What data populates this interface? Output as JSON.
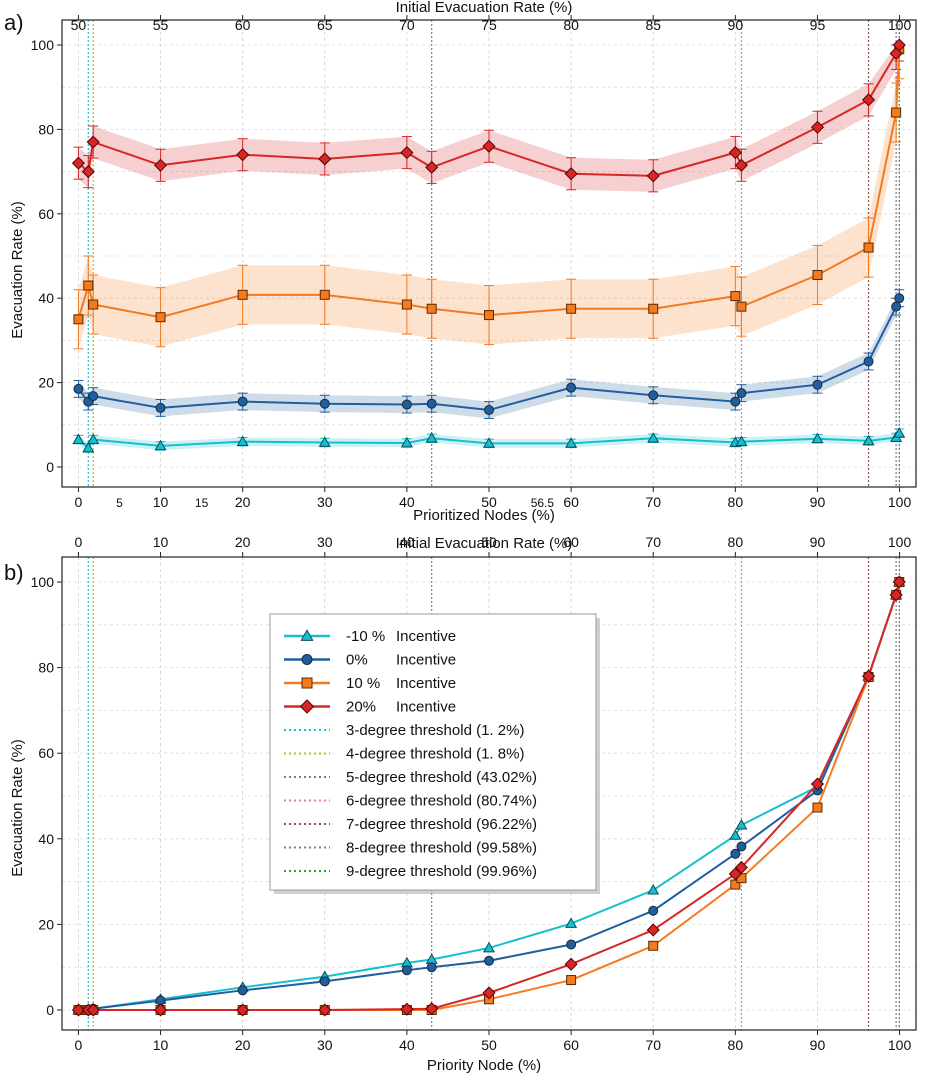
{
  "panel_a": {
    "label": "a)",
    "top_axis_label": "Initial Evacuation Rate (%)",
    "top_ticks": [
      {
        "label": "50",
        "at": 0
      },
      {
        "label": "55",
        "at": 10
      },
      {
        "label": "60",
        "at": 20
      },
      {
        "label": "65",
        "at": 30
      },
      {
        "label": "70",
        "at": 40
      },
      {
        "label": "75",
        "at": 50
      },
      {
        "label": "80",
        "at": 60
      },
      {
        "label": "85",
        "at": 70
      },
      {
        "label": "90",
        "at": 80
      },
      {
        "label": "95",
        "at": 90
      },
      {
        "label": "100",
        "at": 100
      }
    ],
    "bottom_major_ticks": [
      "0",
      "10",
      "20",
      "30",
      "40",
      "50",
      "60",
      "70",
      "80",
      "90",
      "100"
    ],
    "bottom_minor_ticks": [
      {
        "label": "5",
        "at": 5
      },
      {
        "label": "15",
        "at": 15
      },
      {
        "label": "56.5",
        "at": 56.5
      }
    ],
    "xlabel": "Prioritized Nodes (%)",
    "ylabel": "Evacuation Rate (%)",
    "ylim": [
      0,
      100
    ],
    "yticks": [
      "0",
      "20",
      "40",
      "60",
      "80",
      "100"
    ]
  },
  "panel_b": {
    "label": "b)",
    "top_axis_label": "Initial Evacuation Rate (%)",
    "top_ticks": [
      "0",
      "10",
      "20",
      "30",
      "40",
      "50",
      "60",
      "70",
      "80",
      "90",
      "100"
    ],
    "xlabel": "Priority Node (%)",
    "ylabel": "Evacuation Rate (%)",
    "ylim": [
      0,
      100
    ],
    "yticks": [
      "0",
      "20",
      "40",
      "60",
      "80",
      "100"
    ]
  },
  "legend": {
    "series": [
      {
        "marker_label": "-10 %",
        "text": "Incentive"
      },
      {
        "marker_label": "0%",
        "text": "Incentive"
      },
      {
        "marker_label": "10 %",
        "text": "Incentive"
      },
      {
        "marker_label": "20%",
        "text": "Incentive"
      }
    ],
    "thresholds": [
      "3-degree threshold (1. 2%)",
      "4-degree threshold (1. 8%)",
      "5-degree threshold (43.02%)",
      "6-degree threshold (80.74%)",
      "7-degree threshold (96.22%)",
      "8-degree threshold (99.58%)",
      "9-degree threshold (99.96%)"
    ]
  },
  "chart_data": [
    {
      "type": "line",
      "title": "a)",
      "xlabel": "Prioritized Nodes (%)",
      "ylabel": "Evacuation Rate (%)",
      "top_xlabel": "Initial Evacuation Rate (%)",
      "xlim": [
        -2,
        102
      ],
      "ylim": [
        0,
        100
      ],
      "x": [
        0,
        1.2,
        1.8,
        10,
        20,
        30,
        40,
        43.02,
        50,
        60,
        70,
        80,
        80.74,
        90,
        96.22,
        99.58,
        99.96
      ],
      "thresholds": [
        {
          "name": "3-degree",
          "x": 1.2,
          "color": "#17becf"
        },
        {
          "name": "4-degree",
          "x": 1.8,
          "color": "#bcbd22"
        },
        {
          "name": "5-degree",
          "x": 43.02,
          "color": "#7f7f7f"
        },
        {
          "name": "6-degree",
          "x": 80.74,
          "color": "#e377c2"
        },
        {
          "name": "7-degree",
          "x": 96.22,
          "color": "#8c564b"
        },
        {
          "name": "8-degree",
          "x": 99.58,
          "color": "#9467bd"
        },
        {
          "name": "9-degree",
          "x": 99.96,
          "color": "#2ca02c"
        }
      ],
      "series": [
        {
          "name": "-10 % Incentive",
          "color": "#17becf",
          "marker": "triangle",
          "values": [
            6.5,
            4.5,
            6.5,
            5,
            6,
            5.8,
            5.7,
            6.8,
            5.6,
            5.6,
            6.8,
            5.8,
            6.0,
            6.7,
            6.2,
            7.0,
            8.0
          ],
          "band": 1.0
        },
        {
          "name": "0% Incentive",
          "color": "#1f5fa0",
          "marker": "circle",
          "values": [
            18.5,
            15.5,
            16.8,
            14,
            15.5,
            15,
            14.8,
            15,
            13.5,
            18.8,
            17,
            15.5,
            17.5,
            19.5,
            25,
            38,
            40
          ],
          "band": 2.0
        },
        {
          "name": "10 % Incentive",
          "color": "#f47a20",
          "marker": "square",
          "values": [
            35,
            43,
            38.5,
            35.5,
            40.8,
            40.8,
            38.5,
            37.5,
            36,
            37.5,
            37.5,
            40.5,
            38,
            45.5,
            52,
            84,
            99
          ],
          "band": 7.0
        },
        {
          "name": "20% Incentive",
          "color": "#d62728",
          "marker": "diamond",
          "values": [
            72,
            70,
            77,
            71.5,
            74,
            73,
            74.5,
            71,
            76,
            69.5,
            69,
            74.5,
            71.5,
            80.5,
            87,
            98,
            100
          ],
          "band": 3.8
        }
      ]
    },
    {
      "type": "line",
      "title": "b)",
      "xlabel": "Priority Node (%)",
      "ylabel": "Evacuation Rate (%)",
      "top_xlabel": "Initial Evacuation Rate (%)",
      "xlim": [
        -2,
        102
      ],
      "ylim": [
        0,
        100
      ],
      "x": [
        0,
        1.2,
        1.8,
        10,
        20,
        30,
        40,
        43.02,
        50,
        60,
        70,
        80,
        80.74,
        90,
        96.22,
        99.58,
        99.96
      ],
      "thresholds": [
        {
          "name": "3-degree",
          "x": 1.2,
          "color": "#17becf"
        },
        {
          "name": "4-degree",
          "x": 1.8,
          "color": "#bcbd22"
        },
        {
          "name": "5-degree",
          "x": 43.02,
          "color": "#7f7f7f"
        },
        {
          "name": "6-degree",
          "x": 80.74,
          "color": "#e377c2"
        },
        {
          "name": "7-degree",
          "x": 96.22,
          "color": "#8c564b"
        },
        {
          "name": "8-degree",
          "x": 99.58,
          "color": "#9467bd"
        },
        {
          "name": "9-degree",
          "x": 99.96,
          "color": "#2ca02c"
        }
      ],
      "series": [
        {
          "name": "-10 % Incentive",
          "color": "#17becf",
          "marker": "triangle",
          "values": [
            0,
            0,
            0.3,
            2.5,
            5.3,
            7.8,
            11,
            11.8,
            14.5,
            20.2,
            28,
            40.8,
            43.2,
            52.2,
            78,
            97,
            100
          ]
        },
        {
          "name": "0% Incentive",
          "color": "#1f5fa0",
          "marker": "circle",
          "values": [
            0,
            0,
            0.3,
            2.2,
            4.6,
            6.7,
            9.3,
            10,
            11.5,
            15.3,
            23.2,
            36.5,
            38.2,
            51.3,
            78,
            97,
            100
          ]
        },
        {
          "name": "10 % Incentive",
          "color": "#f47a20",
          "marker": "square",
          "values": [
            0,
            0,
            0,
            0,
            0,
            0,
            0,
            0,
            2.5,
            7,
            15,
            29.3,
            30.8,
            47.3,
            77.8,
            97,
            100
          ]
        },
        {
          "name": "20% Incentive",
          "color": "#d62728",
          "marker": "diamond",
          "values": [
            0,
            0,
            0,
            0,
            0,
            0,
            0.2,
            0.3,
            4,
            10.7,
            18.7,
            31.8,
            33.3,
            52.8,
            78,
            97,
            100
          ]
        }
      ]
    }
  ]
}
